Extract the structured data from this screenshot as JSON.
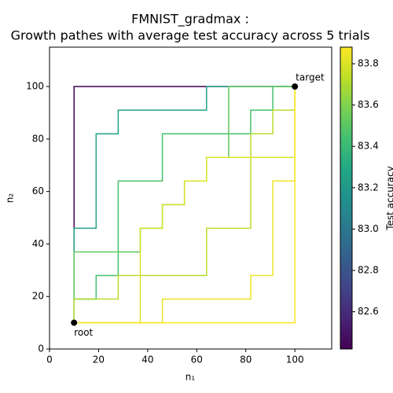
{
  "chart_data": {
    "type": "step_paths",
    "title": "FMNIST_gradmax :",
    "subtitle": "Growth pathes with average test accuracy across 5 trials",
    "x_label": "n₁",
    "y_label": "n₂",
    "xlim": [
      0,
      115
    ],
    "ylim": [
      0,
      115
    ],
    "xticks": [
      0,
      20,
      40,
      60,
      80,
      100
    ],
    "yticks": [
      0,
      20,
      40,
      60,
      80,
      100
    ],
    "colormap": "viridis",
    "colorbar": {
      "label": "Test accuracy",
      "lim": [
        82.42,
        83.88
      ],
      "ticks": [
        82.6,
        82.8,
        {
          "value": 83,
          "label": "83.0"
        },
        83.2,
        83.4,
        83.6,
        83.8
      ]
    },
    "series": [
      {
        "value": 82.43,
        "x": [
          10,
          10,
          100
        ],
        "y": [
          10,
          100,
          100
        ]
      },
      {
        "value": 83.25,
        "x": [
          10,
          10,
          19,
          19,
          28,
          28,
          64,
          64,
          100
        ],
        "y": [
          10,
          46,
          46,
          82,
          82,
          91,
          91,
          100,
          100
        ]
      },
      {
        "value": 83.45,
        "x": [
          10,
          10,
          19,
          19,
          28,
          28,
          46,
          46,
          82,
          82,
          91,
          91,
          100
        ],
        "y": [
          10,
          19,
          19,
          28,
          28,
          64,
          64,
          82,
          82,
          91,
          91,
          100,
          100
        ]
      },
      {
        "value": 83.52,
        "x": [
          10,
          10,
          37,
          37,
          46,
          46,
          55,
          55,
          64,
          64,
          73,
          73,
          100
        ],
        "y": [
          10,
          37,
          37,
          46,
          46,
          55,
          55,
          64,
          64,
          73,
          73,
          100,
          100
        ]
      },
      {
        "value": 83.72,
        "x": [
          10,
          10,
          28,
          28,
          64,
          64,
          82,
          82,
          91,
          91,
          100,
          100
        ],
        "y": [
          10,
          19,
          19,
          28,
          28,
          46,
          46,
          82,
          82,
          91,
          91,
          100
        ]
      },
      {
        "value": 83.8,
        "x": [
          10,
          37,
          37,
          46,
          46,
          55,
          55,
          64,
          64,
          73,
          73,
          100,
          100
        ],
        "y": [
          10,
          10,
          46,
          46,
          55,
          55,
          64,
          64,
          73,
          73,
          73,
          73,
          100
        ]
      },
      {
        "value": 83.84,
        "x": [
          10,
          46,
          46,
          82,
          82,
          91,
          91,
          100,
          100
        ],
        "y": [
          10,
          10,
          19,
          19,
          28,
          28,
          64,
          64,
          100
        ]
      },
      {
        "value": 83.87,
        "x": [
          10,
          100,
          100
        ],
        "y": [
          10,
          10,
          100
        ]
      }
    ],
    "points": [
      {
        "label": "root",
        "x": 10,
        "y": 10
      },
      {
        "label": "target",
        "x": 100,
        "y": 100
      }
    ]
  }
}
